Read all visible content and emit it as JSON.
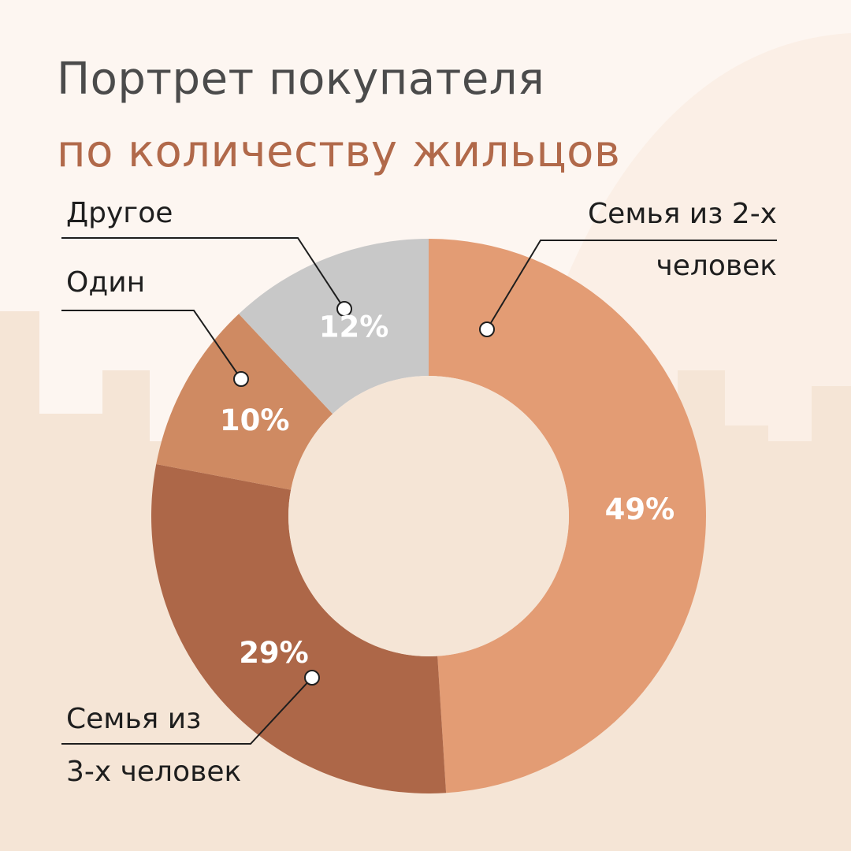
{
  "title": "Портрет покупателя",
  "subtitle": "по количеству жильцов",
  "colors": {
    "background": "#fdf6f1",
    "ground": "#f5e5d6",
    "title": "#4b4b4b",
    "subtitle": "#b1694a",
    "donut_hole": "#f5e5d6"
  },
  "chart_data": {
    "type": "pie",
    "variant": "donut",
    "slices": [
      {
        "label": "Семья из 2-х человек",
        "label_lines": [
          "Семья из 2-х",
          "человек"
        ],
        "value": 49,
        "display": "49%",
        "color": "#e39c74"
      },
      {
        "label": "Семья из 3-х человек",
        "label_lines": [
          "Семья из",
          "3-х человек"
        ],
        "value": 29,
        "display": "29%",
        "color": "#ad6748"
      },
      {
        "label": "Один",
        "label_lines": [
          "Один"
        ],
        "value": 10,
        "display": "10%",
        "color": "#cf8a62"
      },
      {
        "label": "Другое",
        "label_lines": [
          "Другое"
        ],
        "value": 12,
        "display": "12%",
        "color": "#c8c8c8"
      }
    ]
  }
}
